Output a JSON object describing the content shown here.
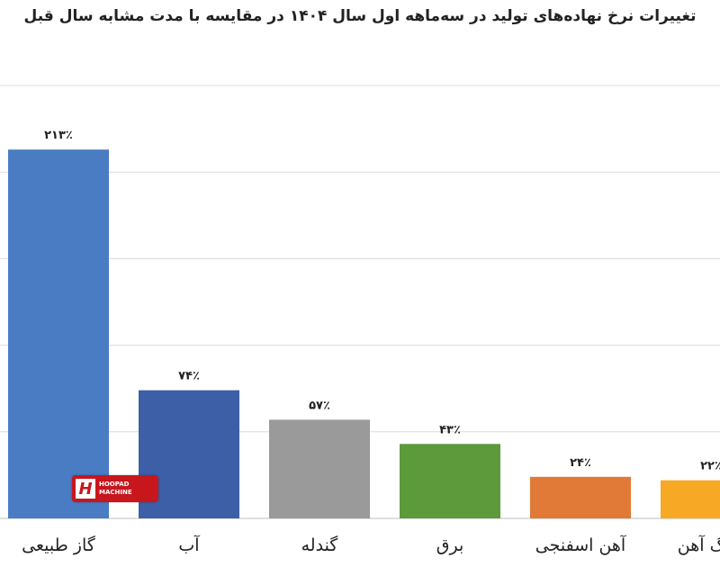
{
  "chart_data": {
    "type": "bar",
    "title": "تغییرات نرخ نهاده‌های تولید در سه‌ماهه اول سال ۱۴۰۴ در مقایسه با مدت مشابه سال قبل",
    "categories": [
      "گاز طبیعی",
      "آب",
      "گندله",
      "برق",
      "آهن اسفنجی",
      "سنگ آهن"
    ],
    "values": [
      213,
      74,
      57,
      43,
      24,
      22
    ],
    "data_labels": [
      "۲۱۳٪",
      "۷۴٪",
      "۵۷٪",
      "۴۳٪",
      "۲۴٪",
      "۲۲٪"
    ],
    "colors": [
      "#4a7cc4",
      "#3d5fa8",
      "#9a9a9a",
      "#5c9a3c",
      "#e07a36",
      "#f7a825"
    ],
    "ylim": [
      0,
      250
    ],
    "grid": true,
    "legend": "none"
  },
  "watermark": {
    "logo_mark": "H",
    "text_line1": "HOOPAD",
    "text_line2": "MACHINE"
  }
}
